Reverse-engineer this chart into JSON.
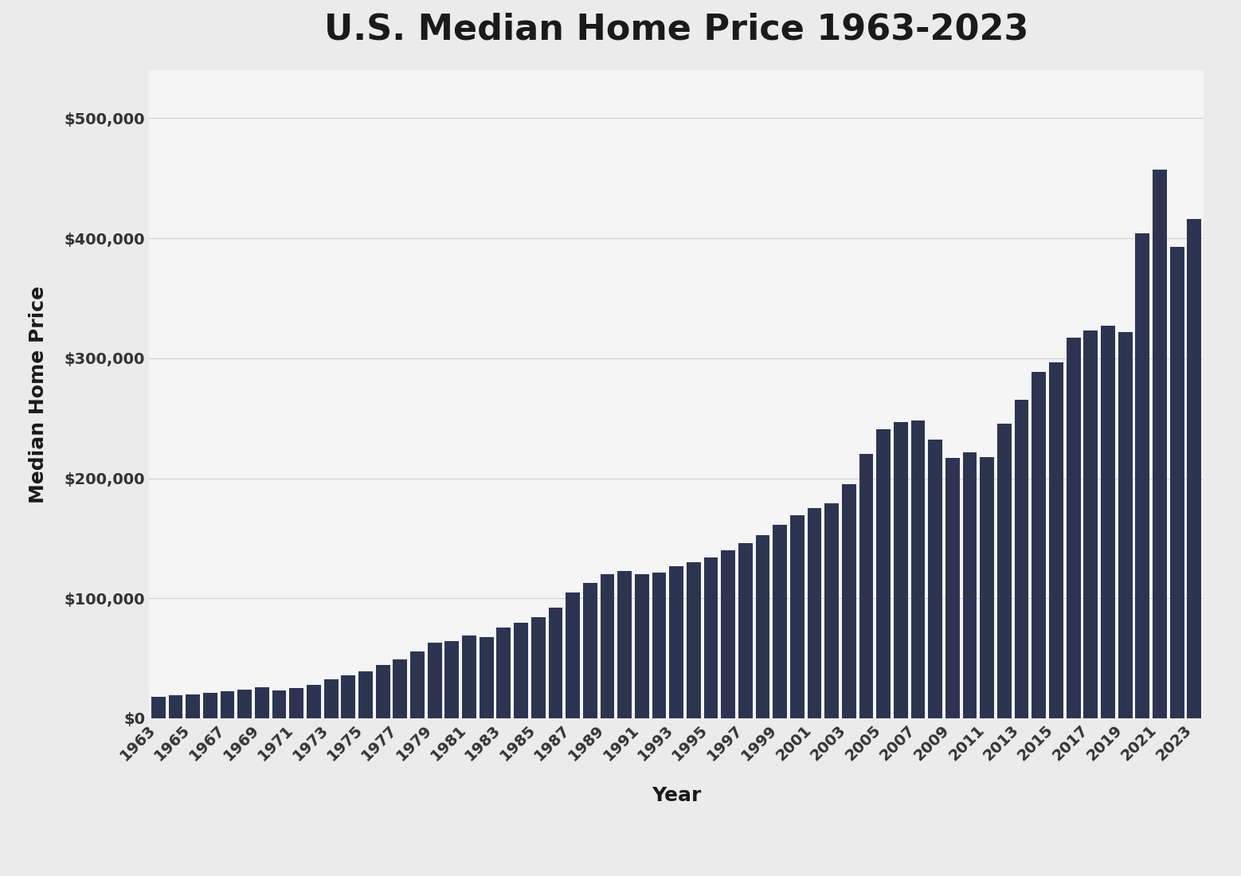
{
  "title": "U.S. Median Home Price 1963-2023",
  "xlabel": "Year",
  "ylabel": "Median Home Price",
  "background_color": "#ebebeb",
  "plot_background_color": "#f5f5f5",
  "bar_color": "#2d3452",
  "years": [
    1963,
    1964,
    1965,
    1966,
    1967,
    1968,
    1969,
    1970,
    1971,
    1972,
    1973,
    1974,
    1975,
    1976,
    1977,
    1978,
    1979,
    1980,
    1981,
    1982,
    1983,
    1984,
    1985,
    1986,
    1987,
    1988,
    1989,
    1990,
    1991,
    1992,
    1993,
    1994,
    1995,
    1996,
    1997,
    1998,
    1999,
    2000,
    2001,
    2002,
    2003,
    2004,
    2005,
    2006,
    2007,
    2008,
    2009,
    2010,
    2011,
    2012,
    2013,
    2014,
    2015,
    2016,
    2017,
    2018,
    2019,
    2020,
    2021,
    2022,
    2023
  ],
  "prices": [
    18000,
    19300,
    20000,
    21400,
    22700,
    24000,
    25600,
    23400,
    25200,
    27600,
    32500,
    35900,
    39300,
    44200,
    48800,
    55700,
    62900,
    64600,
    68900,
    67800,
    75300,
    79900,
    84300,
    92000,
    104500,
    112500,
    120000,
    122900,
    120000,
    121500,
    126500,
    130000,
    133900,
    140000,
    146000,
    152500,
    161000,
    169000,
    175200,
    179200,
    195000,
    220000,
    240900,
    246500,
    247900,
    232100,
    216700,
    221800,
    217900,
    245200,
    265500,
    288900,
    296400,
    317200,
    323100,
    327100,
    321500,
    403900,
    457300,
    392700,
    416100
  ],
  "yticks": [
    0,
    100000,
    200000,
    300000,
    400000,
    500000
  ],
  "ylim": [
    0,
    540000
  ],
  "title_fontsize": 32,
  "axis_label_fontsize": 18,
  "tick_fontsize": 14,
  "title_color": "#1a1a1a",
  "tick_color": "#333333",
  "grid_color": "#d0d0d0"
}
